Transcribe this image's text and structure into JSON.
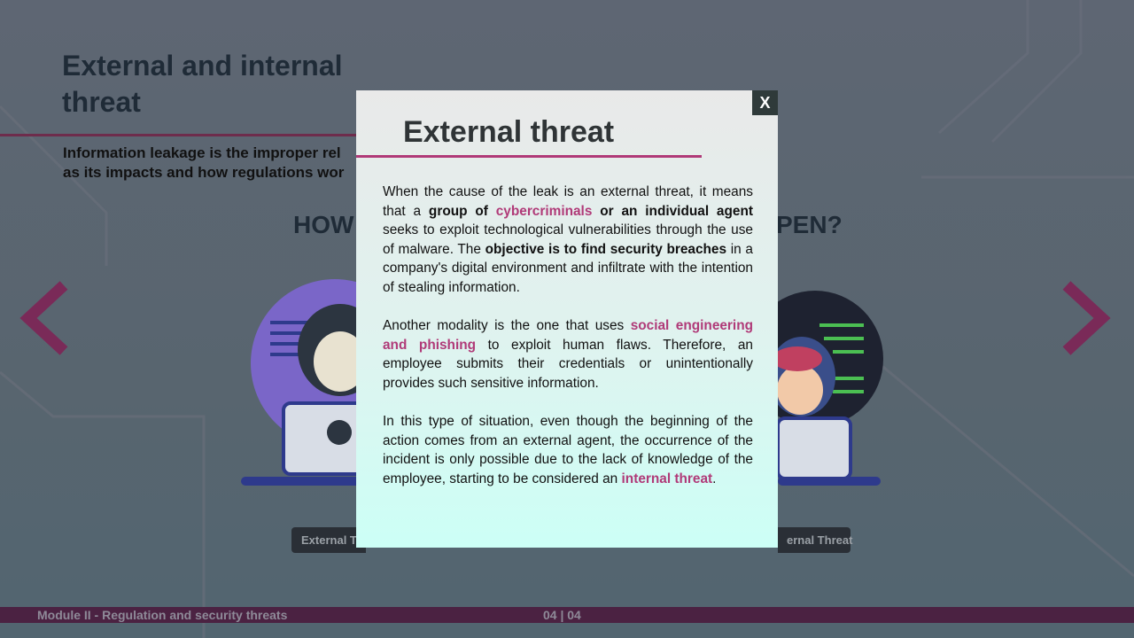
{
  "slide": {
    "title": "External and internal threat",
    "intro_lines": [
      "Information leakage is the improper rel",
      "as its impacts and how regulations wor"
    ],
    "heading_left": "HOW",
    "heading_right": "PEN?",
    "button_left": "External T",
    "button_right": "ernal Threat"
  },
  "modal": {
    "title": "External threat",
    "close": "X",
    "paragraphs": [
      [
        {
          "text": "When the cause of the leak is an external threat, it means that a ",
          "style": "normal"
        },
        {
          "text": "group of ",
          "style": "bold"
        },
        {
          "text": "cybercriminals",
          "style": "pink"
        },
        {
          "text": " or an individual agent",
          "style": "bold"
        },
        {
          "text": " seeks to exploit technological vulnerabilities through the use of malware. The ",
          "style": "normal"
        },
        {
          "text": "objective is to find security breaches",
          "style": "bold"
        },
        {
          "text": " in a company's digital environment and infiltrate with the intention of stealing information.",
          "style": "normal"
        }
      ],
      [
        {
          "text": "Another modality is the one that uses ",
          "style": "normal"
        },
        {
          "text": "social engineering and phishing",
          "style": "pink"
        },
        {
          "text": " to exploit human flaws. Therefore, an employee submits their credentials or unintentionally provides such sensitive information.",
          "style": "normal"
        }
      ],
      [
        {
          "text": "In this type of situation, even though the beginning of the action comes from an external agent, the occurrence of the incident is only possible due to the lack of knowledge of the employee, starting to be considered an ",
          "style": "normal"
        },
        {
          "text": "internal threat",
          "style": "pink"
        },
        {
          "text": ".",
          "style": "normal"
        }
      ]
    ]
  },
  "footer": {
    "module": "Module II - Regulation and security threats",
    "page": "04 | 04"
  }
}
